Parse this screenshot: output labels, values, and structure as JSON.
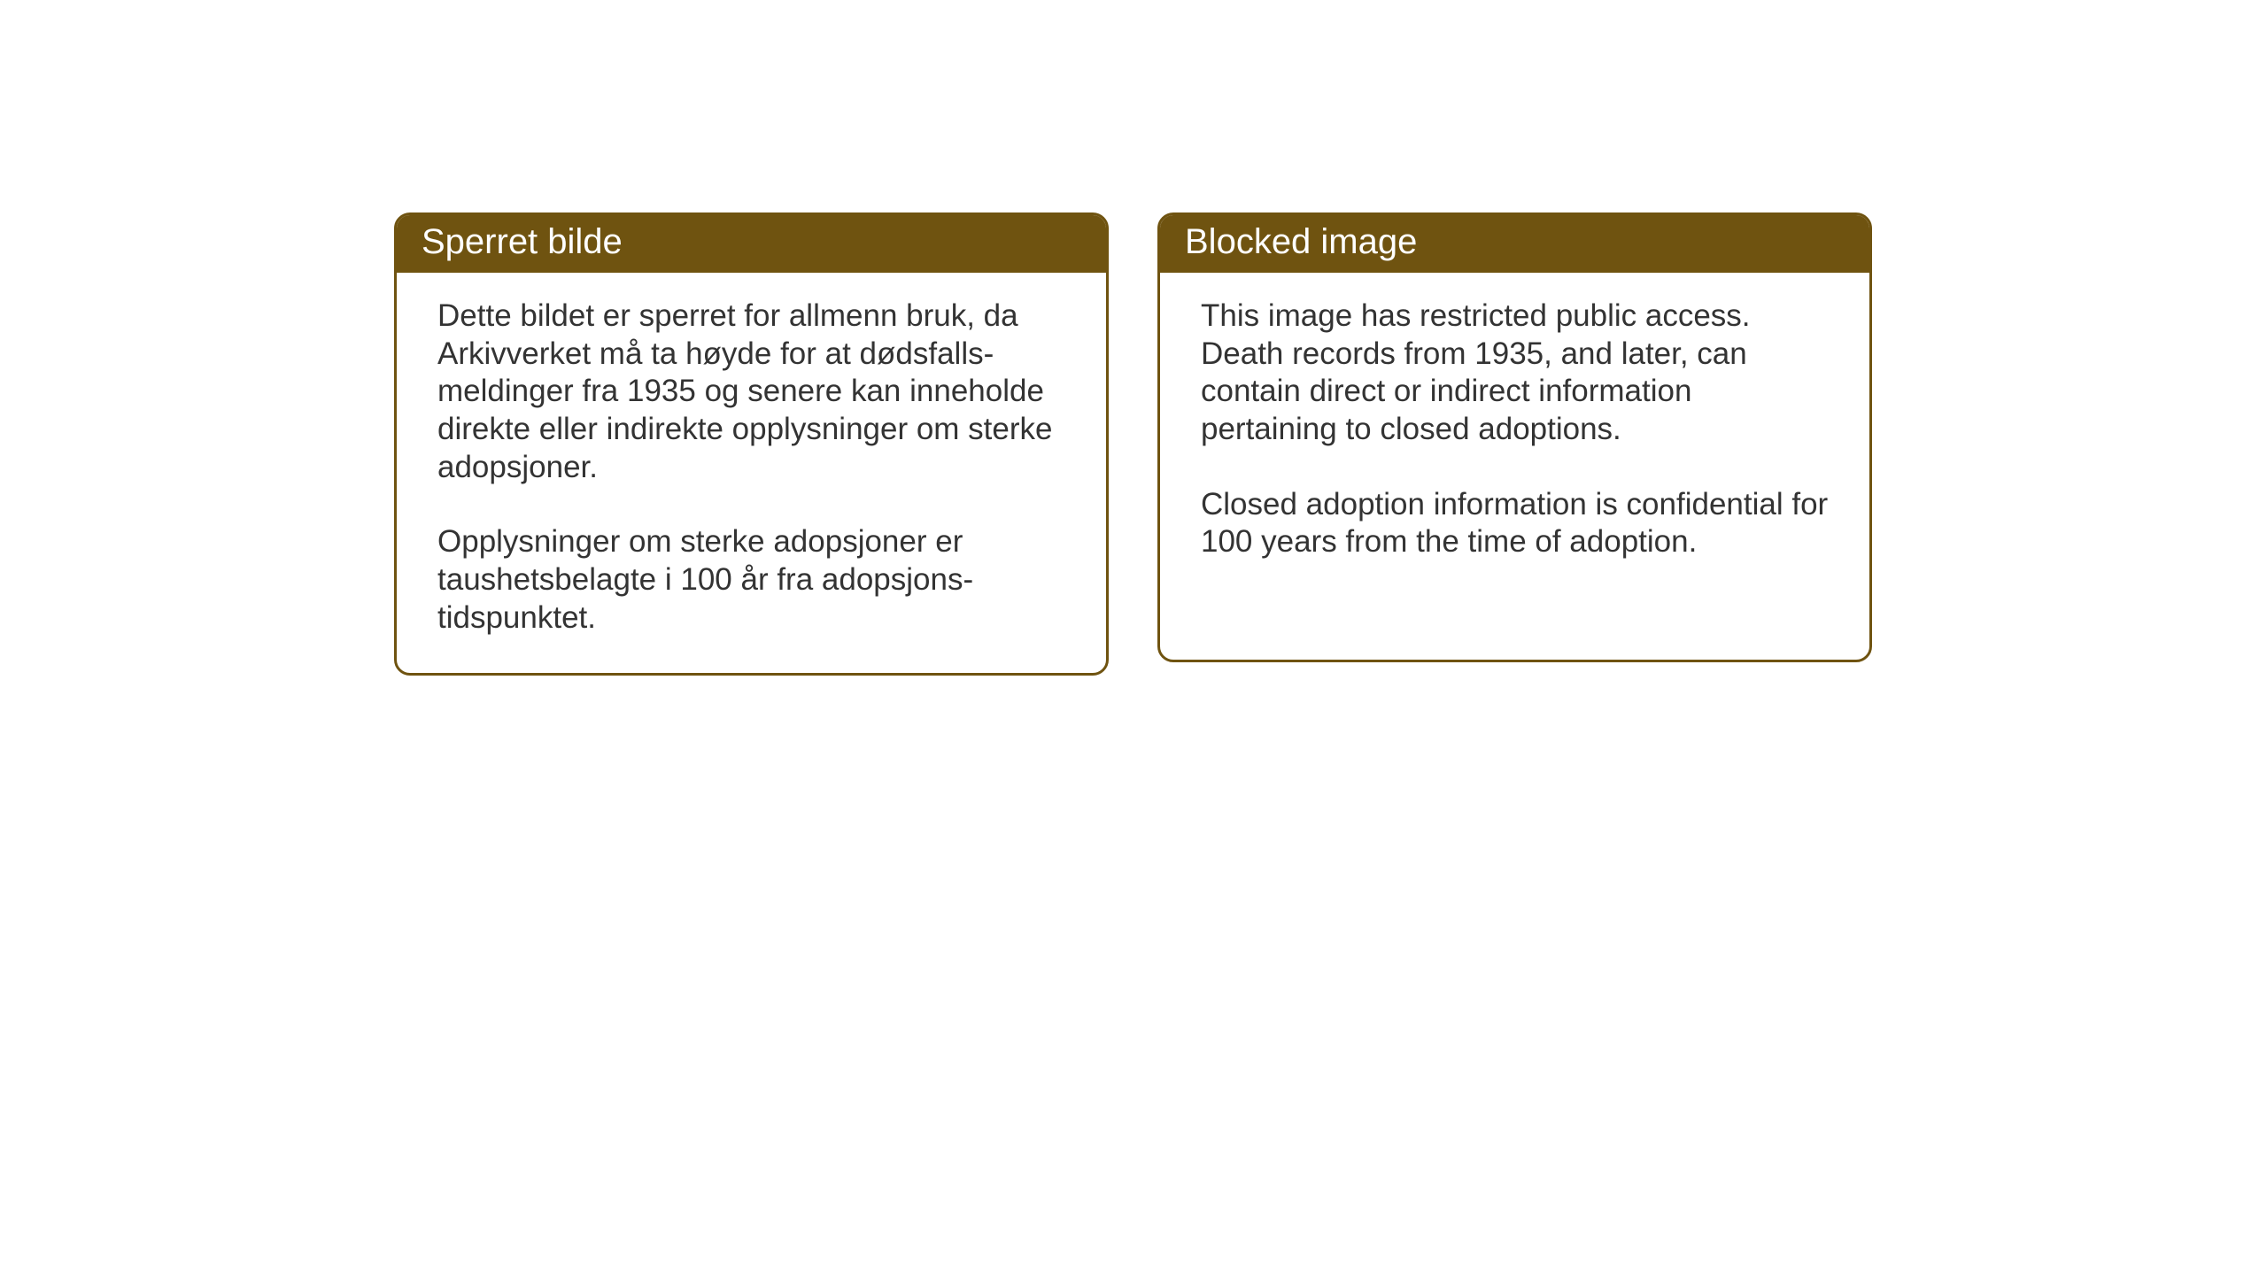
{
  "layout": {
    "background_color": "#ffffff",
    "card_border_color": "#6f5310",
    "card_border_width": 3,
    "card_border_radius": 18,
    "header_background_color": "#6f5310",
    "header_text_color": "#ffffff",
    "body_text_color": "#333333",
    "header_fontsize": 40,
    "body_fontsize": 35
  },
  "cards": {
    "left": {
      "title": "Sperret bilde",
      "paragraph1": "Dette bildet er sperret for allmenn bruk, da Arkivverket må ta høyde for at dødsfalls-meldinger fra 1935 og senere kan inneholde direkte eller indirekte opplysninger om sterke adopsjoner.",
      "paragraph2": "Opplysninger om sterke adopsjoner er taushetsbelagte i 100 år fra adopsjons-tidspunktet."
    },
    "right": {
      "title": "Blocked image",
      "paragraph1": "This image has restricted public access. Death records from 1935, and later, can contain direct or indirect information pertaining to closed adoptions.",
      "paragraph2": "Closed adoption information is confidential for 100 years from the time of adoption."
    }
  }
}
